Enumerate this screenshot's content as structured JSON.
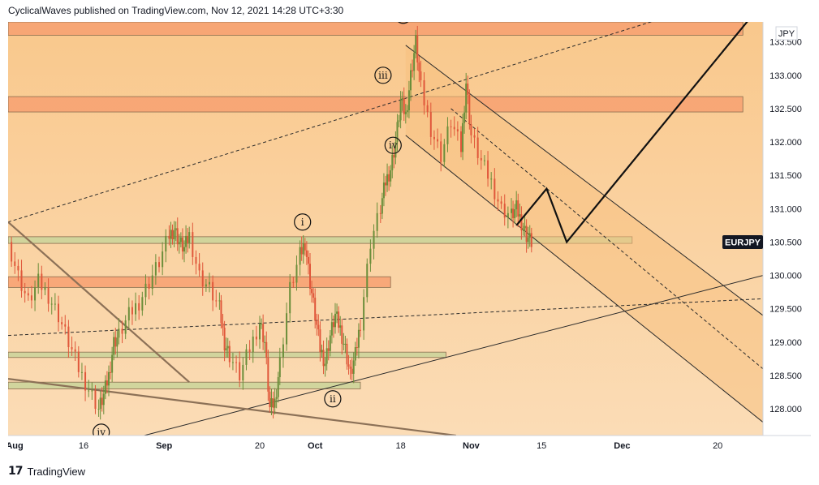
{
  "header": {
    "text": "CyclicalWaves published on TradingView.com, Nov 12, 2021 14:28 UTC+3:30"
  },
  "footer": {
    "logo_icon": "tradingview-logo-icon",
    "brand": "TradingView"
  },
  "colors": {
    "background_gradient": [
      "#f9c88c",
      "#fbdcb6"
    ],
    "zone_orange": "#f7a071",
    "zone_green": "#c9d39a",
    "channel_fill": "#f7c07e",
    "line_dark": "#2a2a2a",
    "line_brown": "#8c7157",
    "candle_up": "#6b8e3a",
    "candle_down": "#e0573a",
    "label_bg": "#131722"
  },
  "chart_data": {
    "type": "line",
    "title": "",
    "currency_label": "JPY",
    "symbol_label": "EURJPY",
    "last_price": 130.5,
    "y_axis": {
      "ylim": [
        127.6,
        133.8
      ],
      "ticks": [
        "128.000",
        "128.500",
        "129.000",
        "129.500",
        "130.000",
        "130.500",
        "131.000",
        "131.500",
        "132.000",
        "132.500",
        "133.000",
        "133.500"
      ]
    },
    "x_axis": {
      "ticks": [
        {
          "label": "Aug",
          "day": 0
        },
        {
          "label": "16",
          "day": 15
        },
        {
          "label": "Sep",
          "day": 31
        },
        {
          "label": "20",
          "day": 50
        },
        {
          "label": "Oct",
          "day": 61
        },
        {
          "label": "18",
          "day": 78
        },
        {
          "label": "Nov",
          "day": 92
        },
        {
          "label": "15",
          "day": 106
        },
        {
          "label": "Dec",
          "day": 122
        },
        {
          "label": "20",
          "day": 141
        }
      ],
      "xlim": [
        0,
        150
      ]
    },
    "price_series": {
      "name": "",
      "x": [
        0,
        2,
        4,
        6,
        8,
        10,
        12,
        14,
        16,
        18,
        19,
        20,
        21,
        22,
        24,
        26,
        28,
        30,
        32,
        33,
        34,
        35,
        36,
        38,
        40,
        42,
        43,
        44,
        46,
        48,
        50,
        51,
        52,
        53,
        54,
        56,
        58,
        59,
        60,
        61,
        62,
        63,
        64,
        65,
        66,
        67,
        68,
        69,
        70,
        72,
        74,
        75,
        76,
        77,
        78,
        79,
        80,
        81,
        82,
        84,
        86,
        88,
        90,
        91,
        92,
        94,
        96,
        98,
        100,
        101,
        102,
        103,
        104
      ],
      "y": [
        130.5,
        130.0,
        129.6,
        129.9,
        129.7,
        129.4,
        129.0,
        128.6,
        128.3,
        128.0,
        128.2,
        128.5,
        129.0,
        129.1,
        129.4,
        129.6,
        129.9,
        130.2,
        130.6,
        130.7,
        130.5,
        130.4,
        130.6,
        130.0,
        129.8,
        129.5,
        129.0,
        128.8,
        128.5,
        128.9,
        129.3,
        129.0,
        128.0,
        128.1,
        128.7,
        129.8,
        130.3,
        130.5,
        129.9,
        129.4,
        128.9,
        128.7,
        129.1,
        129.4,
        129.2,
        128.9,
        128.5,
        128.8,
        129.3,
        130.5,
        131.0,
        131.4,
        131.6,
        132.0,
        132.6,
        132.4,
        133.0,
        133.5,
        132.8,
        132.2,
        131.8,
        132.3,
        131.9,
        132.9,
        132.1,
        131.7,
        131.4,
        131.0,
        130.9,
        131.0,
        130.8,
        130.6,
        130.5
      ]
    },
    "projection_path": {
      "name": "",
      "x": [
        101,
        107,
        111,
        149
      ],
      "y": [
        130.75,
        131.3,
        130.5,
        134.0
      ]
    },
    "horizontal_zones": [
      {
        "kind": "orange",
        "from_day": 0,
        "to_day": 146,
        "low": 133.6,
        "high": 133.8
      },
      {
        "kind": "orange",
        "from_day": 0,
        "to_day": 146,
        "low": 132.45,
        "high": 132.68
      },
      {
        "kind": "orange",
        "from_day": 0,
        "to_day": 76,
        "low": 129.82,
        "high": 129.98
      },
      {
        "kind": "green",
        "from_day": 0,
        "to_day": 124,
        "low": 130.48,
        "high": 130.58
      },
      {
        "kind": "green",
        "from_day": 0,
        "to_day": 87,
        "low": 128.77,
        "high": 128.85
      },
      {
        "kind": "green",
        "from_day": 0,
        "to_day": 70,
        "low": 128.3,
        "high": 128.4
      }
    ],
    "trend_lines": [
      {
        "style": "dashed",
        "x": [
          0,
          132
        ],
        "y": [
          130.8,
          133.9
        ]
      },
      {
        "style": "dashed",
        "x": [
          0,
          150
        ],
        "y": [
          129.1,
          129.65
        ]
      },
      {
        "style": "solid",
        "x": [
          27,
          150
        ],
        "y": [
          127.6,
          130.0
        ]
      },
      {
        "style": "solid",
        "x": [
          79,
          150
        ],
        "y": [
          133.45,
          129.4
        ]
      },
      {
        "style": "solid",
        "x": [
          79,
          150
        ],
        "y": [
          132.1,
          127.8
        ]
      },
      {
        "style": "dashed",
        "x": [
          88,
          150
        ],
        "y": [
          132.5,
          128.6
        ]
      },
      {
        "style": "brown",
        "x": [
          0,
          36
        ],
        "y": [
          130.8,
          128.4
        ]
      },
      {
        "style": "brown",
        "x": [
          0,
          89
        ],
        "y": [
          128.45,
          127.6
        ]
      }
    ],
    "wave_labels": [
      {
        "text": "v",
        "x": 78.5,
        "y": 133.9
      },
      {
        "text": "iii",
        "x": 74.5,
        "y": 133.0
      },
      {
        "text": "iv",
        "x": 76.5,
        "y": 131.95
      },
      {
        "text": "i",
        "x": 58.5,
        "y": 130.8
      },
      {
        "text": "ii",
        "x": 64.5,
        "y": 128.15
      },
      {
        "text": "iv",
        "x": 18.5,
        "y": 127.65
      }
    ]
  }
}
